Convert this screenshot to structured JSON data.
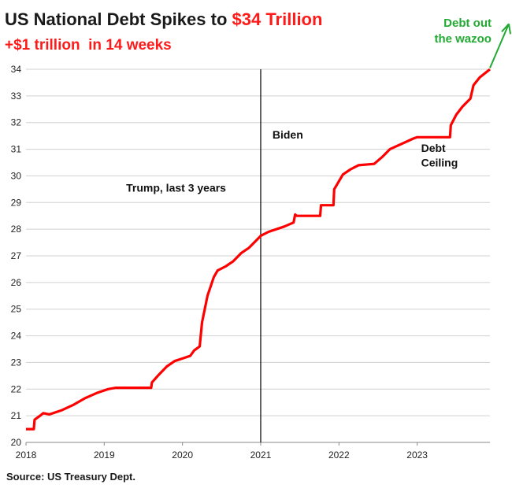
{
  "title": {
    "prefix": "US National Debt Spikes to ",
    "highlight": "$34 Trillion"
  },
  "subtitle": "+$1 trillion  in 14 weeks",
  "source": "Source: US Treasury Dept.",
  "colors": {
    "line": "#ff0000",
    "accent": "#ff1a1a",
    "green": "#22aa33",
    "grid": "#d0d0d0"
  },
  "chart_data": {
    "type": "line",
    "title": "US National Debt Spikes to $34 Trillion",
    "subtitle": "+$1 trillion  in 14 weeks",
    "xlabel": "",
    "ylabel": "",
    "xlim": [
      2018.0,
      2023.93
    ],
    "ylim": [
      20,
      34
    ],
    "x_ticks": [
      2018,
      2019,
      2020,
      2021,
      2022,
      2023
    ],
    "y_ticks": [
      20,
      21,
      22,
      23,
      24,
      25,
      26,
      27,
      28,
      29,
      30,
      31,
      32,
      33,
      34
    ],
    "grid": "horizontal",
    "series": [
      {
        "points": [
          [
            2018.0,
            20.5
          ],
          [
            2018.1,
            20.5
          ],
          [
            2018.11,
            20.85
          ],
          [
            2018.18,
            21.0
          ],
          [
            2018.22,
            21.1
          ],
          [
            2018.3,
            21.05
          ],
          [
            2018.45,
            21.2
          ],
          [
            2018.6,
            21.4
          ],
          [
            2018.75,
            21.65
          ],
          [
            2018.9,
            21.85
          ],
          [
            2019.05,
            22.0
          ],
          [
            2019.15,
            22.05
          ],
          [
            2019.2,
            22.05
          ],
          [
            2019.6,
            22.05
          ],
          [
            2019.61,
            22.25
          ],
          [
            2019.7,
            22.55
          ],
          [
            2019.8,
            22.85
          ],
          [
            2019.9,
            23.05
          ],
          [
            2020.0,
            23.15
          ],
          [
            2020.1,
            23.25
          ],
          [
            2020.15,
            23.45
          ],
          [
            2020.22,
            23.6
          ],
          [
            2020.25,
            24.5
          ],
          [
            2020.32,
            25.5
          ],
          [
            2020.4,
            26.2
          ],
          [
            2020.45,
            26.45
          ],
          [
            2020.55,
            26.6
          ],
          [
            2020.65,
            26.8
          ],
          [
            2020.75,
            27.1
          ],
          [
            2020.85,
            27.3
          ],
          [
            2020.95,
            27.6
          ],
          [
            2021.0,
            27.75
          ],
          [
            2021.1,
            27.9
          ],
          [
            2021.3,
            28.1
          ],
          [
            2021.42,
            28.25
          ],
          [
            2021.44,
            28.55
          ],
          [
            2021.46,
            28.5
          ],
          [
            2021.76,
            28.5
          ],
          [
            2021.77,
            28.9
          ],
          [
            2021.93,
            28.9
          ],
          [
            2021.94,
            29.5
          ],
          [
            2022.05,
            30.05
          ],
          [
            2022.15,
            30.25
          ],
          [
            2022.25,
            30.4
          ],
          [
            2022.45,
            30.45
          ],
          [
            2022.55,
            30.7
          ],
          [
            2022.65,
            31.0
          ],
          [
            2022.8,
            31.2
          ],
          [
            2022.95,
            31.4
          ],
          [
            2023.0,
            31.45
          ],
          [
            2023.42,
            31.45
          ],
          [
            2023.43,
            31.9
          ],
          [
            2023.5,
            32.3
          ],
          [
            2023.58,
            32.6
          ],
          [
            2023.68,
            32.9
          ],
          [
            2023.72,
            33.4
          ],
          [
            2023.8,
            33.7
          ],
          [
            2023.93,
            34.0
          ]
        ]
      }
    ],
    "annotations": [
      {
        "text": "Trump, last 3 years",
        "x": 2019.28,
        "y": 29.4
      },
      {
        "text": "Biden",
        "x": 2021.15,
        "y": 31.4
      },
      {
        "text": "Debt",
        "x": 2023.05,
        "y": 30.9
      },
      {
        "text": "Ceiling",
        "x": 2023.05,
        "y": 30.35
      },
      {
        "text": "Debt out",
        "x": 2023.95,
        "y": 35.6
      },
      {
        "text": "the wazoo",
        "x": 2023.95,
        "y": 35.0
      }
    ],
    "vline_x": 2021.0
  }
}
